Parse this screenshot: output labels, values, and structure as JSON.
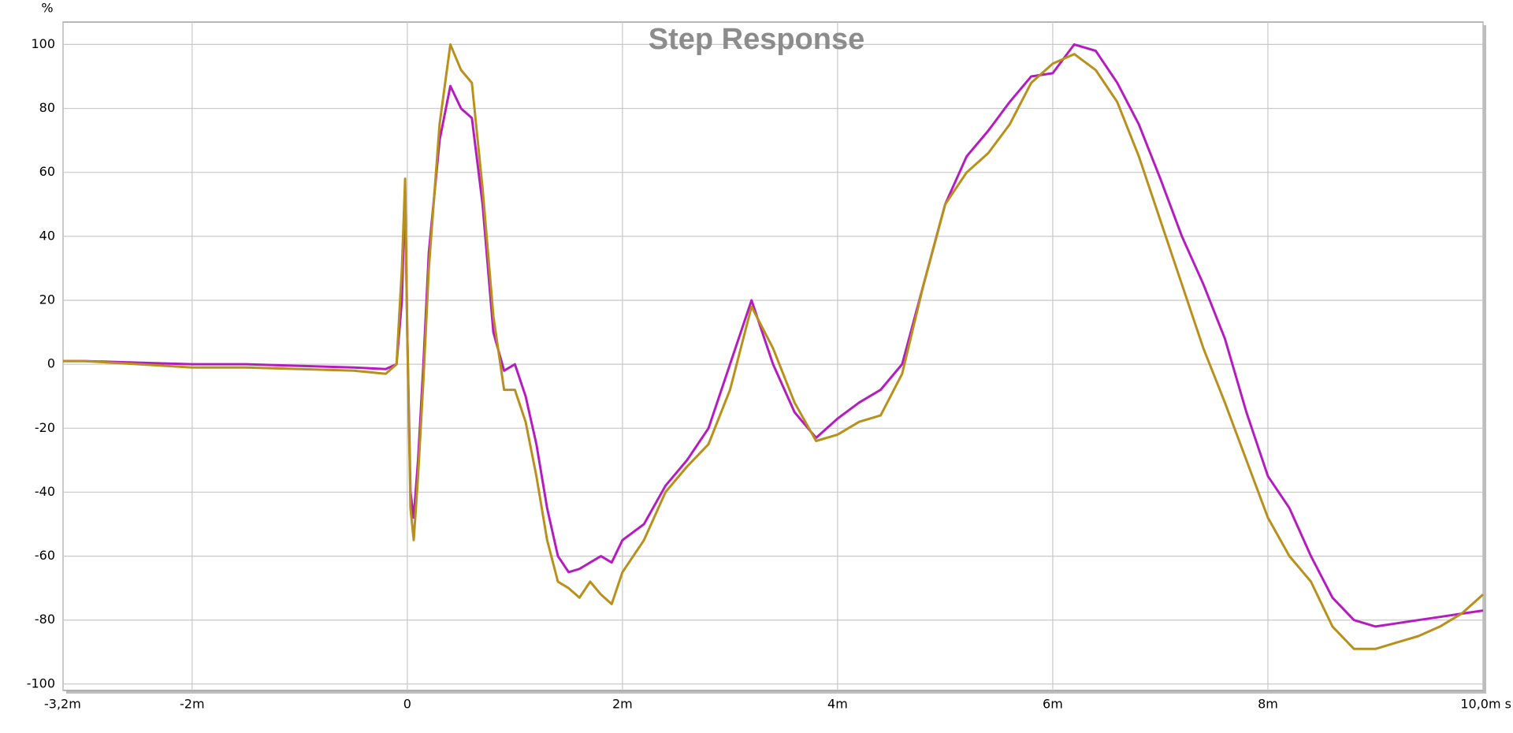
{
  "chart_data": {
    "type": "line",
    "title": "Step Response",
    "y_label": "%",
    "x": [
      -3.2,
      -3.0,
      -2.5,
      -2.0,
      -1.5,
      -1.0,
      -0.5,
      -0.2,
      -0.1,
      -0.05,
      -0.02,
      0.0,
      0.03,
      0.06,
      0.1,
      0.15,
      0.2,
      0.3,
      0.4,
      0.5,
      0.6,
      0.7,
      0.8,
      0.9,
      1.0,
      1.1,
      1.2,
      1.3,
      1.4,
      1.5,
      1.6,
      1.7,
      1.8,
      1.9,
      2.0,
      2.2,
      2.4,
      2.6,
      2.8,
      3.0,
      3.2,
      3.4,
      3.6,
      3.8,
      4.0,
      4.2,
      4.4,
      4.6,
      4.8,
      5.0,
      5.2,
      5.4,
      5.6,
      5.8,
      6.0,
      6.2,
      6.4,
      6.6,
      6.8,
      7.0,
      7.2,
      7.4,
      7.6,
      7.8,
      8.0,
      8.2,
      8.4,
      8.6,
      8.8,
      9.0,
      9.2,
      9.4,
      9.6,
      9.8,
      10.0
    ],
    "series": [
      {
        "color": "#b51cc0",
        "values": [
          1,
          1,
          0.5,
          0,
          0,
          -0.5,
          -1,
          -1.5,
          0,
          20,
          55,
          10,
          -40,
          -48,
          -30,
          0,
          35,
          70,
          87,
          80,
          77,
          50,
          10,
          -2,
          0,
          -10,
          -25,
          -45,
          -60,
          -65,
          -64,
          -62,
          -60,
          -62,
          -55,
          -50,
          -38,
          -30,
          -20,
          0,
          20,
          0,
          -15,
          -23,
          -17,
          -12,
          -8,
          0,
          25,
          50,
          65,
          73,
          82,
          90,
          91,
          100,
          98,
          88,
          75,
          58,
          40,
          25,
          8,
          -15,
          -35,
          -45,
          -60,
          -73,
          -80,
          -82,
          -81,
          -80,
          -79,
          -78,
          -77
        ]
      },
      {
        "color": "#b8901c",
        "values": [
          1,
          1,
          0,
          -1,
          -1,
          -1.5,
          -2,
          -3,
          0,
          30,
          58,
          10,
          -45,
          -55,
          -35,
          -5,
          30,
          75,
          100,
          92,
          88,
          55,
          15,
          -8,
          -8,
          -18,
          -35,
          -55,
          -68,
          -70,
          -73,
          -68,
          -72,
          -75,
          -65,
          -55,
          -40,
          -32,
          -25,
          -8,
          18,
          5,
          -12,
          -24,
          -22,
          -18,
          -16,
          -3,
          25,
          50,
          60,
          66,
          75,
          88,
          94,
          97,
          92,
          82,
          65,
          45,
          25,
          5,
          -12,
          -30,
          -48,
          -60,
          -68,
          -82,
          -89,
          -89,
          -87,
          -85,
          -82,
          -78,
          -72
        ]
      }
    ],
    "xlim": [
      -3.2,
      10.0
    ],
    "xticks": [
      {
        "value": -3.2,
        "label": "-3,2m"
      },
      {
        "value": -2,
        "label": "-2m"
      },
      0,
      {
        "value": 2,
        "label": "2m"
      },
      {
        "value": 4,
        "label": "4m"
      },
      {
        "value": 6,
        "label": "6m"
      },
      {
        "value": 8,
        "label": "8m"
      },
      {
        "value": 10,
        "label": "10,0m s"
      }
    ],
    "ylim": [
      -102,
      107
    ],
    "yticks": [
      -100,
      -80,
      -60,
      -40,
      -20,
      0,
      20,
      40,
      60,
      80,
      100
    ],
    "grid": true
  }
}
